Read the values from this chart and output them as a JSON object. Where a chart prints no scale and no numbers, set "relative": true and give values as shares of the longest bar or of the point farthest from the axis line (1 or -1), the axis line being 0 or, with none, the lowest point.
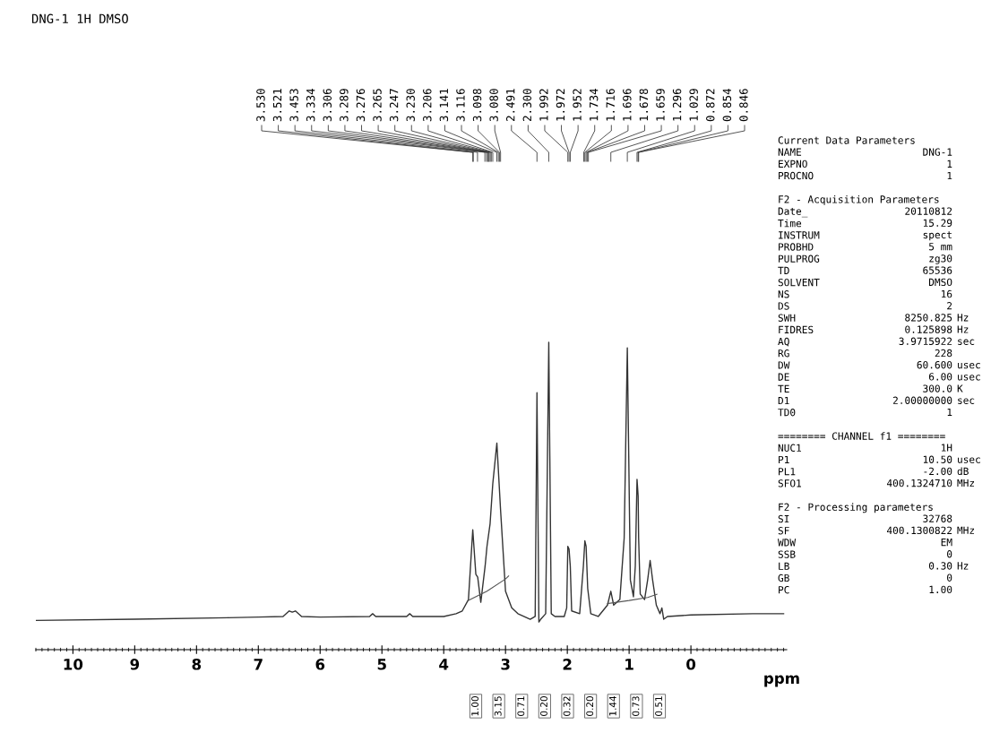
{
  "chart_data": {
    "type": "line",
    "title": "DNG-1 1H DMSO",
    "xlabel": "ppm",
    "relative": true,
    "xlim": [
      10.6,
      -1.55
    ],
    "xticks": [
      10,
      9,
      8,
      7,
      6,
      5,
      4,
      3,
      2,
      1,
      0
    ],
    "grid": false,
    "legend": false,
    "marker": "none",
    "line_style": "solid",
    "series": [
      {
        "color": "#333333",
        "x": [
          10.6,
          9.0,
          7.5,
          7.0,
          6.6,
          6.5,
          6.45,
          6.4,
          6.3,
          6.0,
          5.2,
          5.15,
          5.1,
          4.6,
          4.55,
          4.5,
          4.0,
          3.8,
          3.7,
          3.6,
          3.53,
          3.48,
          3.45,
          3.4,
          3.33,
          3.3,
          3.25,
          3.206,
          3.14,
          3.08,
          3.0,
          2.9,
          2.8,
          2.6,
          2.52,
          2.491,
          2.46,
          2.43,
          2.35,
          2.3,
          2.26,
          2.2,
          2.05,
          2.01,
          1.992,
          1.972,
          1.952,
          1.93,
          1.8,
          1.74,
          1.716,
          1.696,
          1.67,
          1.62,
          1.5,
          1.35,
          1.296,
          1.25,
          1.15,
          1.08,
          1.029,
          0.98,
          0.93,
          0.9,
          0.872,
          0.854,
          0.846,
          0.82,
          0.75,
          0.7,
          0.66,
          0.62,
          0.56,
          0.5,
          0.47,
          0.44,
          0.38,
          0.0,
          -1.0,
          -1.5
        ],
        "values": [
          0.095,
          0.099,
          0.104,
          0.106,
          0.108,
          0.126,
          0.122,
          0.126,
          0.108,
          0.106,
          0.108,
          0.117,
          0.108,
          0.108,
          0.117,
          0.108,
          0.108,
          0.117,
          0.126,
          0.163,
          0.39,
          0.245,
          0.236,
          0.154,
          0.272,
          0.336,
          0.409,
          0.54,
          0.672,
          0.454,
          0.19,
          0.136,
          0.117,
          0.099,
          0.108,
          0.836,
          0.09,
          0.099,
          0.117,
          1.0,
          0.117,
          0.108,
          0.108,
          0.136,
          0.336,
          0.327,
          0.272,
          0.126,
          0.117,
          0.272,
          0.354,
          0.336,
          0.199,
          0.117,
          0.108,
          0.145,
          0.19,
          0.145,
          0.163,
          0.363,
          0.982,
          0.227,
          0.172,
          0.272,
          0.554,
          0.5,
          0.363,
          0.181,
          0.163,
          0.227,
          0.29,
          0.227,
          0.145,
          0.117,
          0.136,
          0.099,
          0.108,
          0.113,
          0.117,
          0.117
        ]
      },
      {
        "color": "#555555",
        "x": [
          3.6,
          3.3,
          3.0,
          2.95
        ],
        "values": [
          0.16,
          0.19,
          0.23,
          0.24
        ]
      },
      {
        "color": "#555555",
        "x": [
          1.35,
          1.0,
          0.7,
          0.55
        ],
        "values": [
          0.15,
          0.16,
          0.17,
          0.18
        ]
      }
    ],
    "annotations": [
      {
        "text": "3.530",
        "x": 3.53
      },
      {
        "text": "3.521",
        "x": 3.521
      },
      {
        "text": "3.453",
        "x": 3.453
      },
      {
        "text": "3.334",
        "x": 3.334
      },
      {
        "text": "3.306",
        "x": 3.306
      },
      {
        "text": "3.289",
        "x": 3.289
      },
      {
        "text": "3.276",
        "x": 3.276
      },
      {
        "text": "3.265",
        "x": 3.265
      },
      {
        "text": "3.247",
        "x": 3.247
      },
      {
        "text": "3.230",
        "x": 3.23
      },
      {
        "text": "3.206",
        "x": 3.206
      },
      {
        "text": "3.141",
        "x": 3.141
      },
      {
        "text": "3.116",
        "x": 3.116
      },
      {
        "text": "3.098",
        "x": 3.098
      },
      {
        "text": "3.080",
        "x": 3.08
      },
      {
        "text": "2.491",
        "x": 2.491
      },
      {
        "text": "2.300",
        "x": 2.3
      },
      {
        "text": "1.992",
        "x": 1.992
      },
      {
        "text": "1.972",
        "x": 1.972
      },
      {
        "text": "1.952",
        "x": 1.952
      },
      {
        "text": "1.734",
        "x": 1.734
      },
      {
        "text": "1.716",
        "x": 1.716
      },
      {
        "text": "1.696",
        "x": 1.696
      },
      {
        "text": "1.678",
        "x": 1.678
      },
      {
        "text": "1.659",
        "x": 1.659
      },
      {
        "text": "1.296",
        "x": 1.296
      },
      {
        "text": "1.029",
        "x": 1.029
      },
      {
        "text": "0.872",
        "x": 0.872
      },
      {
        "text": "0.854",
        "x": 0.854
      },
      {
        "text": "0.846",
        "x": 0.846
      },
      "1.00",
      "3.15",
      "0.71",
      "0.20",
      "0.32",
      "0.20",
      "1.44",
      "0.73",
      "0.51",
      "Current Data Parameters\nNAME\nEXPNO\nPROCNO\n\nF2 - Acquisition Parameters\nDate_\nTime\nINSTRUM\nPROBHD\nPULPROG\nTD\nSOLVENT\nNS\nDS\nSWH\nFIDRES\nAQ\nRG\nDW\nDE\nTE\nD1\nTD0\n\n======== CHANNEL f1 ========\nNUC1\nP1\nPL1\nSFO1\n\nF2 - Processing parameters\nSI\nSF\nWDW\nSSB\nLB\nGB\nPC",
      "\nDNG-1\n1\n1\n\n\n20110812\n15.29\nspect\n5 mm\nzg30\n65536\nDMSO\n16\n2\n8250.825\n0.125898\n3.9715922\n228\n60.600\n6.00\n300.0\n2.00000000\n1\n\n\n1H\n10.50\n-2.00\n400.1324710\n\n\n32768\n400.1300822\nEM\n0\n0.30\n0\n1.00",
      "\n\n\n\n\n\n\n\n\n\n\n\n\n\n\nHz\nHz\nsec\n\nusec\nusec\nK\nsec\n\n\n\n\nusec\ndB\nMHz\n\n\n\nMHz\n\n\nHz"
    ]
  }
}
